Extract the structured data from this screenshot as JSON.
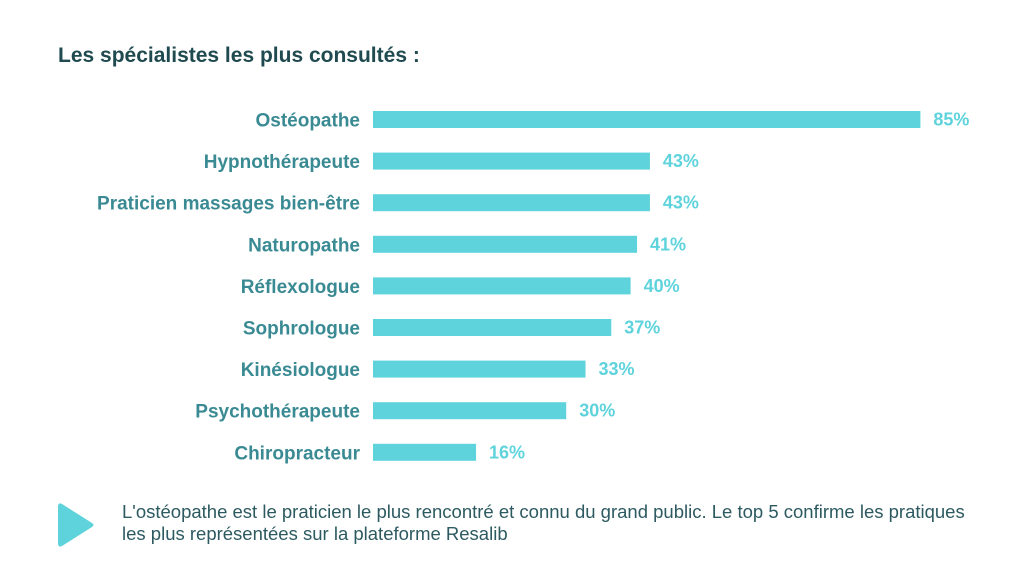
{
  "title": "Les spécialistes les plus consultés :",
  "chart_data": {
    "type": "bar",
    "orientation": "horizontal",
    "categories": [
      "Ostéopathe",
      "Hypnothérapeute",
      "Praticien massages bien-être",
      "Naturopathe",
      "Réflexologue",
      "Sophrologue",
      "Kinésiologue",
      "Psychothérapeute",
      "Chiropracteur"
    ],
    "values": [
      85,
      43,
      43,
      41,
      40,
      37,
      33,
      30,
      16
    ],
    "value_labels": [
      "85%",
      "43%",
      "43%",
      "41%",
      "40%",
      "37%",
      "33%",
      "30%",
      "16%"
    ],
    "unit": "%",
    "xlim": [
      0,
      100
    ],
    "grid": false,
    "bar_color": "#5ed3dc"
  },
  "footer": {
    "text": "L'ostéopathe est le praticien le plus rencontré et connu du grand public. Le top 5 confirme les pratiques les plus représentées sur la plateforme Resalib",
    "icon": "play-triangle-icon",
    "icon_color": "#5ed3dc"
  },
  "colors": {
    "title": "#1f4a4f",
    "category_label": "#3a8a93",
    "value_label": "#5ed3dc",
    "footer_text": "#2c5a60"
  }
}
